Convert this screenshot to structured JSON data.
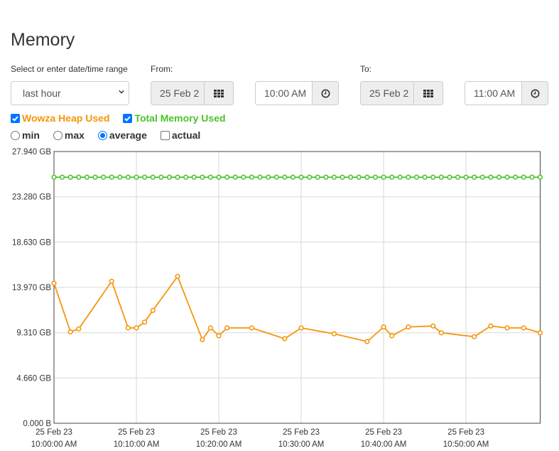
{
  "page": {
    "title": "Memory"
  },
  "range": {
    "label": "Select or enter date/time range",
    "selected": "last hour"
  },
  "from": {
    "label": "From:",
    "date": "25 Feb 2",
    "time": "10:00 AM"
  },
  "to": {
    "label": "To:",
    "date": "25 Feb 2",
    "time": "11:00 AM"
  },
  "series_toggles": [
    {
      "label": "Wowza Heap Used",
      "checked": true,
      "color": "#f5960a"
    },
    {
      "label": "Total Memory Used",
      "checked": true,
      "color": "#4ac42a"
    }
  ],
  "modes": [
    {
      "label": "min",
      "type": "radio",
      "selected": false
    },
    {
      "label": "max",
      "type": "radio",
      "selected": false
    },
    {
      "label": "average",
      "type": "radio",
      "selected": true
    },
    {
      "label": "actual",
      "type": "checkbox",
      "selected": false
    }
  ],
  "chart_data": {
    "type": "line",
    "x_range": [
      0,
      59
    ],
    "ylim": [
      0,
      27.94
    ],
    "y_ticks": [
      {
        "value": 0,
        "label": "0.000 B"
      },
      {
        "value": 4.66,
        "label": "4.660 GB"
      },
      {
        "value": 9.31,
        "label": "9.310 GB"
      },
      {
        "value": 13.97,
        "label": "13.970 GB"
      },
      {
        "value": 18.63,
        "label": "18.630 GB"
      },
      {
        "value": 23.28,
        "label": "23.280 GB"
      },
      {
        "value": 27.94,
        "label": "27.940 GB"
      }
    ],
    "x_ticks": [
      {
        "value": 0,
        "line1": "25 Feb 23",
        "line2": "10:00:00 AM"
      },
      {
        "value": 10,
        "line1": "25 Feb 23",
        "line2": "10:10:00 AM"
      },
      {
        "value": 20,
        "line1": "25 Feb 23",
        "line2": "10:20:00 AM"
      },
      {
        "value": 30,
        "line1": "25 Feb 23",
        "line2": "10:30:00 AM"
      },
      {
        "value": 40,
        "line1": "25 Feb 23",
        "line2": "10:40:00 AM"
      },
      {
        "value": 50,
        "line1": "25 Feb 23",
        "line2": "10:50:00 AM"
      }
    ],
    "grid": true,
    "series": [
      {
        "name": "Total Memory Used",
        "color": "#4ac42a",
        "x": [
          0,
          1,
          2,
          3,
          4,
          5,
          6,
          7,
          8,
          9,
          10,
          11,
          12,
          13,
          14,
          15,
          16,
          17,
          18,
          19,
          20,
          21,
          22,
          23,
          24,
          25,
          26,
          27,
          28,
          29,
          30,
          31,
          32,
          33,
          34,
          35,
          36,
          37,
          38,
          39,
          40,
          41,
          42,
          43,
          44,
          45,
          46,
          47,
          48,
          49,
          50,
          51,
          52,
          53,
          54,
          55,
          56,
          57,
          58,
          59
        ],
        "y": [
          25.3,
          25.3,
          25.3,
          25.3,
          25.3,
          25.3,
          25.3,
          25.3,
          25.3,
          25.3,
          25.3,
          25.3,
          25.3,
          25.3,
          25.3,
          25.3,
          25.3,
          25.3,
          25.3,
          25.3,
          25.3,
          25.3,
          25.3,
          25.3,
          25.3,
          25.3,
          25.3,
          25.3,
          25.3,
          25.3,
          25.3,
          25.3,
          25.3,
          25.3,
          25.3,
          25.3,
          25.3,
          25.3,
          25.3,
          25.3,
          25.3,
          25.3,
          25.3,
          25.3,
          25.3,
          25.3,
          25.3,
          25.3,
          25.3,
          25.3,
          25.3,
          25.3,
          25.3,
          25.3,
          25.3,
          25.3,
          25.3,
          25.3,
          25.3,
          25.3
        ]
      },
      {
        "name": "Wowza Heap Used",
        "color": "#f5960a",
        "x": [
          0,
          2,
          3,
          7,
          9,
          10,
          11,
          12,
          15,
          18,
          19,
          20,
          21,
          24,
          28,
          30,
          34,
          38,
          40,
          41,
          43,
          46,
          47,
          51,
          53,
          55,
          57,
          59
        ],
        "y": [
          14.4,
          9.4,
          9.7,
          14.6,
          9.8,
          9.8,
          10.4,
          11.6,
          15.1,
          8.6,
          9.8,
          9.0,
          9.8,
          9.8,
          8.7,
          9.8,
          9.2,
          8.4,
          9.9,
          9.0,
          9.9,
          10.0,
          9.3,
          8.9,
          10.0,
          9.8,
          9.8,
          9.3
        ]
      }
    ]
  }
}
